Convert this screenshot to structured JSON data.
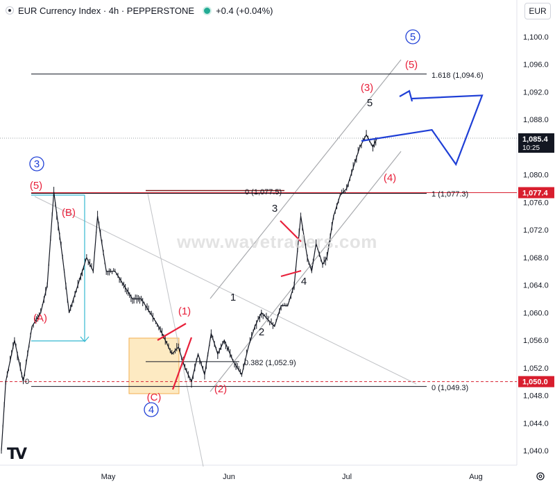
{
  "header": {
    "title": "EUR Currency Index · 4h · PEPPERSTONE",
    "change": "+0.4 (+0.04%)"
  },
  "currency_button": "EUR",
  "watermark": "www.wavetraders.com",
  "colors": {
    "red": "#e8203a",
    "blue": "#1f3fd6",
    "black": "#131722",
    "channel": "#a7a9ad",
    "cyan": "#35b8d0",
    "box_fill": "#fde7b8",
    "box_stroke": "#f0a032",
    "price_tag": "#131722",
    "level_tag": "#d81e2e"
  },
  "chart_data": {
    "type": "line",
    "symbol": "EUR Currency Index",
    "timeframe": "4h",
    "x_axis_labels": [
      "May",
      "Jun",
      "Jul",
      "Aug"
    ],
    "y_ticks": [
      1040,
      1044,
      1048,
      1052,
      1056,
      1060,
      1064,
      1068,
      1072,
      1076,
      1080,
      1084,
      1088,
      1092,
      1096,
      1100
    ],
    "ylim": [
      1039,
      1105
    ],
    "current_price": {
      "label": "1,085.4",
      "sub": "10:25",
      "value": 1085.4
    },
    "level_tags": [
      {
        "label": "1,077.4",
        "value": 1077.4,
        "line": "solid"
      },
      {
        "label": "1,050.0",
        "value": 1050.0,
        "line": "dashed"
      }
    ],
    "fib_levels": [
      {
        "label": "1.618 (1,094.6)",
        "value": 1094.6
      },
      {
        "label": "1 (1,077.3)",
        "value": 1077.3
      },
      {
        "label": "0 (1,077.5)",
        "value": 1077.5
      },
      {
        "label": "0.382 (1,052.9)",
        "value": 1052.9
      },
      {
        "label": "0 (1,049.3)",
        "value": 1049.3
      },
      {
        "label": "0",
        "value": 1050.0
      }
    ],
    "price_path": [
      [
        0,
        1040
      ],
      [
        2,
        1050
      ],
      [
        6,
        1056
      ],
      [
        10,
        1050
      ],
      [
        14,
        1058
      ],
      [
        18,
        1060
      ],
      [
        21,
        1064
      ],
      [
        24,
        1077.5
      ],
      [
        28,
        1068
      ],
      [
        31,
        1060
      ],
      [
        35,
        1064
      ],
      [
        39,
        1068
      ],
      [
        42,
        1066
      ],
      [
        44,
        1074
      ],
      [
        48,
        1066
      ],
      [
        52,
        1066
      ],
      [
        56,
        1064
      ],
      [
        60,
        1062
      ],
      [
        64,
        1062
      ],
      [
        68,
        1060
      ],
      [
        72,
        1058
      ],
      [
        75,
        1056
      ],
      [
        78,
        1054
      ],
      [
        81,
        1055
      ],
      [
        84,
        1052
      ],
      [
        87,
        1050
      ],
      [
        90,
        1054
      ],
      [
        93,
        1051
      ],
      [
        96,
        1057
      ],
      [
        99,
        1054
      ],
      [
        102,
        1056
      ],
      [
        106,
        1053
      ],
      [
        110,
        1051
      ],
      [
        113,
        1055
      ],
      [
        116,
        1058
      ],
      [
        119,
        1060
      ],
      [
        122,
        1059
      ],
      [
        125,
        1058
      ],
      [
        128,
        1061
      ],
      [
        131,
        1061
      ],
      [
        134,
        1064
      ],
      [
        137,
        1074
      ],
      [
        140,
        1068
      ],
      [
        142,
        1066
      ],
      [
        144,
        1070
      ],
      [
        147,
        1067
      ],
      [
        149,
        1068
      ],
      [
        152,
        1074
      ],
      [
        155,
        1077
      ],
      [
        158,
        1078
      ],
      [
        161,
        1081
      ],
      [
        164,
        1084
      ],
      [
        167,
        1085.8
      ],
      [
        170,
        1084
      ],
      [
        172,
        1085.4
      ]
    ],
    "wave_labels": [
      {
        "text": "3",
        "style": "blue-circle",
        "x": 20,
        "y": 1082
      },
      {
        "text": "(5)",
        "style": "red",
        "x": 20,
        "y": 1078.5
      },
      {
        "text": "(B)",
        "style": "red",
        "x": 38,
        "y": 1074.5
      },
      {
        "text": "(A)",
        "style": "red",
        "x": 22,
        "y": 1059.5
      },
      {
        "text": "(1)",
        "style": "red",
        "x": 100,
        "y": 1059
      },
      {
        "text": "(C)",
        "style": "red",
        "x": 86,
        "y": 1047.3
      },
      {
        "text": "4",
        "style": "blue-circle",
        "x": 86,
        "y": 1044.5
      },
      {
        "text": "(2)",
        "style": "red",
        "x": 117,
        "y": 1049.5
      },
      {
        "text": "1",
        "style": "black",
        "x": 124,
        "y": 1062
      },
      {
        "text": "2",
        "style": "black",
        "x": 139,
        "y": 1057.5
      },
      {
        "text": "3",
        "style": "black",
        "x": 147,
        "y": 1075
      },
      {
        "text": "4",
        "style": "black",
        "x": 162,
        "y": 1064.5
      },
      {
        "text": "(3)",
        "style": "red",
        "x": 195,
        "y": 1091
      },
      {
        "text": "5",
        "style": "black",
        "x": 198,
        "y": 1088.3
      },
      {
        "text": "(4)",
        "style": "red",
        "x": 209,
        "y": 1079.2
      },
      {
        "text": "(5)",
        "style": "red",
        "x": 220,
        "y": 1095
      },
      {
        "text": "5",
        "style": "blue-circle",
        "x": 221,
        "y": 1099
      }
    ],
    "projection": [
      [
        197,
        1086.5
      ],
      [
        208,
        1081.5
      ],
      [
        220,
        1091.5
      ]
    ],
    "grid": false
  }
}
